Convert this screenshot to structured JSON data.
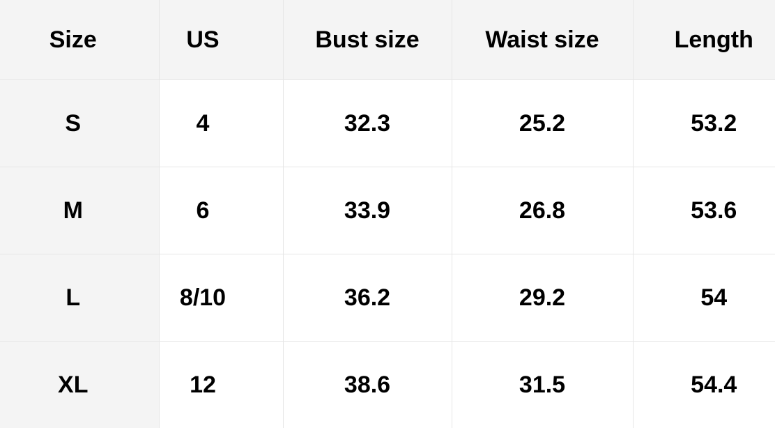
{
  "table": {
    "headers": [
      "Size",
      "US",
      "Bust size",
      "Waist size",
      "Length"
    ],
    "rows": [
      [
        "S",
        "4",
        "32.3",
        "25.2",
        "53.2"
      ],
      [
        "M",
        "6",
        "33.9",
        "26.8",
        "53.6"
      ],
      [
        "L",
        "8/10",
        "36.2",
        "29.2",
        "54"
      ],
      [
        "XL",
        "12",
        "38.6",
        "31.5",
        "54.4"
      ]
    ]
  },
  "colors": {
    "header_bg": "#f4f4f4",
    "border": "#e6e6e6",
    "text": "#000000"
  }
}
